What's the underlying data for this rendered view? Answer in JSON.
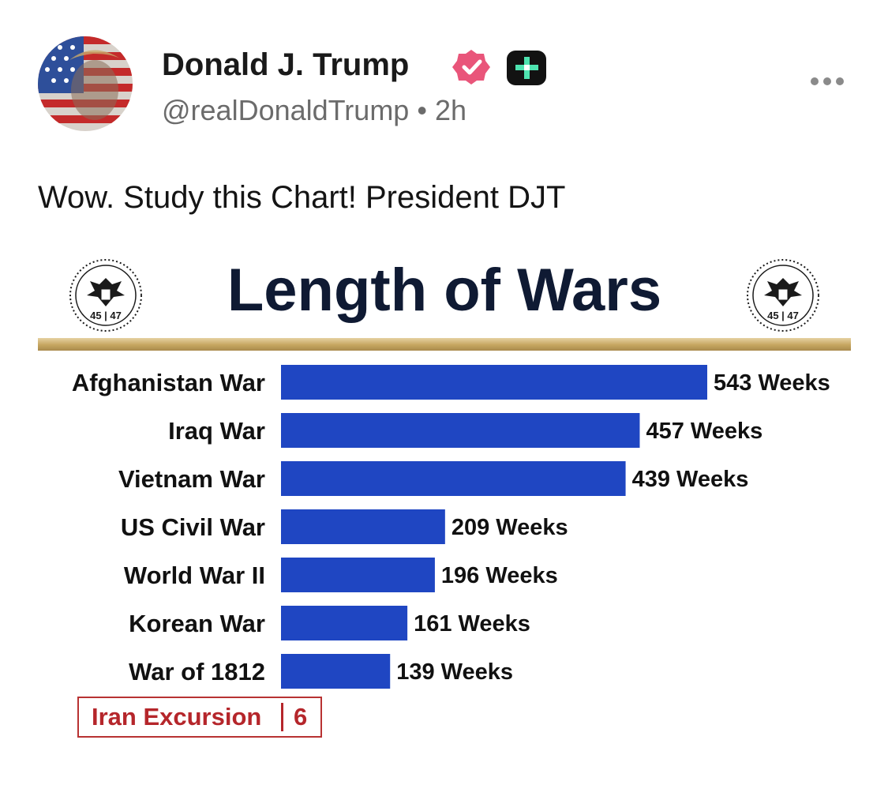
{
  "post": {
    "author_name": "Donald J. Trump",
    "handle": "@realDonaldTrump",
    "separator": "•",
    "time": "2h",
    "text": "Wow. Study this Chart! President DJT"
  },
  "colors": {
    "bar": "#1f46c2",
    "gold": "#c6a660",
    "title": "#0f1a33",
    "callout": "#b5262b",
    "verified": "#e9557a"
  },
  "icons": [
    "avatar-flag-portrait",
    "verified-badge-icon",
    "plus-badge-icon",
    "more-options-icon",
    "presidential-seal-icon"
  ],
  "seal_text": "45 | 47",
  "chart_data": {
    "type": "bar",
    "orientation": "horizontal",
    "title": "Length of Wars",
    "categories": [
      "Afghanistan War",
      "Iraq War",
      "Vietnam War",
      "US Civil War",
      "World War II",
      "Korean War",
      "War of 1812"
    ],
    "values": [
      543,
      457,
      439,
      209,
      196,
      161,
      139
    ],
    "value_labels": [
      "543 Weeks",
      "457 Weeks",
      "439 Weeks",
      "209 Weeks",
      "196 Weeks",
      "161 Weeks",
      "139 Weeks"
    ],
    "xlim": [
      0,
      543
    ],
    "grid": false,
    "annotation": {
      "label": "Iran Excursion",
      "value": "6"
    }
  }
}
